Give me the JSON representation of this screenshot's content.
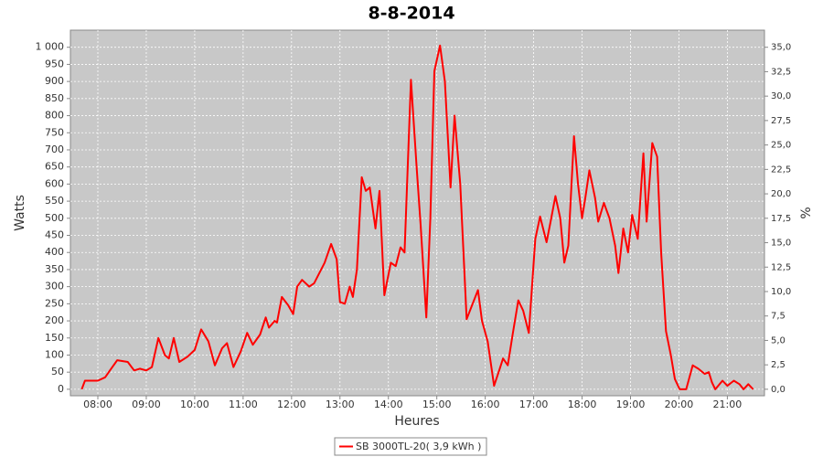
{
  "chart_data": {
    "type": "line",
    "title": "8-8-2014",
    "xlabel": "Heures",
    "ylabel": "Watts",
    "y2label": "%",
    "x": [
      "07:40",
      "07:44",
      "08:00",
      "08:09",
      "08:15",
      "08:24",
      "08:37",
      "08:45",
      "08:52",
      "09:00",
      "09:07",
      "09:15",
      "09:23",
      "09:28",
      "09:34",
      "09:41",
      "09:51",
      "10:00",
      "10:08",
      "10:17",
      "10:25",
      "10:34",
      "10:40",
      "10:48",
      "10:57",
      "11:05",
      "11:12",
      "11:21",
      "11:28",
      "11:32",
      "11:39",
      "11:42",
      "11:48",
      "11:56",
      "12:02",
      "12:07",
      "12:13",
      "12:22",
      "12:28",
      "12:41",
      "12:49",
      "12:56",
      "13:00",
      "13:06",
      "13:12",
      "13:16",
      "13:21",
      "13:27",
      "13:32",
      "13:37",
      "13:44",
      "13:49",
      "13:55",
      "14:03",
      "14:09",
      "14:15",
      "14:20",
      "14:28",
      "14:35",
      "14:40",
      "14:47",
      "14:52",
      "14:57",
      "15:04",
      "15:10",
      "15:17",
      "15:22",
      "15:29",
      "15:37",
      "15:46",
      "15:51",
      "15:56",
      "16:03",
      "16:11",
      "16:18",
      "16:22",
      "16:28",
      "16:34",
      "16:41",
      "16:47",
      "16:54",
      "17:02",
      "17:08",
      "17:16",
      "17:21",
      "17:27",
      "17:33",
      "17:38",
      "17:43",
      "17:50",
      "17:55",
      "18:00",
      "18:04",
      "18:09",
      "18:16",
      "18:20",
      "18:27",
      "18:34",
      "18:41",
      "18:45",
      "18:51",
      "18:57",
      "19:02",
      "19:09",
      "19:16",
      "19:20",
      "19:27",
      "19:33",
      "19:38",
      "19:44",
      "19:50",
      "19:55",
      "20:01",
      "20:09",
      "20:17",
      "20:24",
      "20:32",
      "20:37",
      "20:41",
      "20:45",
      "20:54",
      "21:00",
      "21:08",
      "21:15",
      "21:20",
      "21:26",
      "21:32"
    ],
    "series": [
      {
        "name": "SB 3000TL-20( 3,9 kWh )",
        "color": "#ff0000",
        "values": [
          0,
          25,
          25,
          35,
          55,
          85,
          80,
          55,
          60,
          55,
          65,
          150,
          100,
          90,
          150,
          80,
          95,
          115,
          175,
          140,
          70,
          120,
          135,
          65,
          110,
          165,
          130,
          160,
          210,
          180,
          200,
          195,
          270,
          245,
          220,
          300,
          320,
          300,
          310,
          370,
          425,
          380,
          255,
          250,
          300,
          270,
          350,
          620,
          580,
          590,
          470,
          580,
          275,
          370,
          360,
          415,
          400,
          905,
          650,
          480,
          210,
          500,
          930,
          1005,
          900,
          590,
          800,
          600,
          205,
          260,
          290,
          200,
          140,
          10,
          60,
          90,
          70,
          160,
          260,
          230,
          165,
          440,
          505,
          430,
          490,
          565,
          500,
          370,
          420,
          740,
          600,
          500,
          560,
          640,
          560,
          490,
          545,
          500,
          420,
          340,
          470,
          400,
          510,
          440,
          690,
          490,
          720,
          680,
          400,
          170,
          100,
          30,
          0,
          0,
          70,
          60,
          45,
          50,
          20,
          0,
          25,
          10,
          25,
          15,
          0,
          15,
          0
        ]
      }
    ],
    "xlim": [
      "07:26",
      "21:46"
    ],
    "xticks": [
      "08:00",
      "09:00",
      "10:00",
      "11:00",
      "12:00",
      "13:00",
      "14:00",
      "15:00",
      "16:00",
      "17:00",
      "18:00",
      "19:00",
      "20:00",
      "21:00"
    ],
    "ylim": [
      -19,
      1050
    ],
    "yticks": [
      0,
      50,
      100,
      150,
      200,
      250,
      300,
      350,
      400,
      450,
      500,
      550,
      600,
      650,
      700,
      750,
      800,
      850,
      900,
      950,
      {
        "value": 1000,
        "label": "1 000"
      }
    ],
    "y2lim": [
      -0.665,
      36.75
    ],
    "y2ticks": [
      {
        "value": 0,
        "label": "0,0"
      },
      {
        "value": 2.5,
        "label": "2,5"
      },
      {
        "value": 5,
        "label": "5,0"
      },
      {
        "value": 7.5,
        "label": "7,5"
      },
      {
        "value": 10,
        "label": "10,0"
      },
      {
        "value": 12.5,
        "label": "12,5"
      },
      {
        "value": 15,
        "label": "15,0"
      },
      {
        "value": 17.5,
        "label": "17,5"
      },
      {
        "value": 20,
        "label": "20,0"
      },
      {
        "value": 22.5,
        "label": "22,5"
      },
      {
        "value": 25,
        "label": "25,0"
      },
      {
        "value": 27.5,
        "label": "27,5"
      },
      {
        "value": 30,
        "label": "30,0"
      },
      {
        "value": 32.5,
        "label": "32,5"
      },
      {
        "value": 35,
        "label": "35,0"
      }
    ],
    "grid": true
  }
}
